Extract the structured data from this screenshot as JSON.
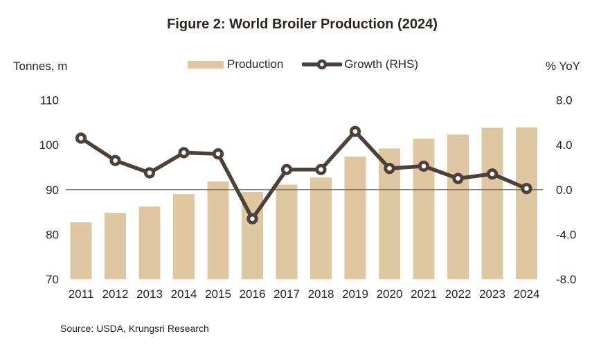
{
  "figure": {
    "title": "Figure 2: World Broiler Production (2024)",
    "left_axis_unit": "Tonnes, m",
    "right_axis_unit": "%  YoY",
    "legend": {
      "production_label": "Production",
      "growth_label": "Growth (RHS)"
    },
    "source": "Source: USDA, Krungsri Research"
  },
  "colors": {
    "bar": "#dfc7a1",
    "line": "#4b4139",
    "marker_fill": "#ffffff",
    "grid": "#5f584f",
    "text": "#262626",
    "title": "#2b2420"
  },
  "chart_data": {
    "type": "bar",
    "subtype": "combo bar + line, dual y-axis",
    "title": "Figure 2: World Broiler Production (2024)",
    "categories": [
      "2011",
      "2012",
      "2013",
      "2014",
      "2015",
      "2016",
      "2017",
      "2018",
      "2019",
      "2020",
      "2021",
      "2022",
      "2023",
      "2024"
    ],
    "series": [
      {
        "name": "Production",
        "type": "bar",
        "axis": "left",
        "unit": "million tonnes",
        "values": [
          82.7,
          84.8,
          86.2,
          89.0,
          91.8,
          89.5,
          91.1,
          92.7,
          97.4,
          99.2,
          101.4,
          102.3,
          103.8,
          103.9
        ]
      },
      {
        "name": "Growth (RHS)",
        "type": "line",
        "axis": "right",
        "unit": "% YoY",
        "values": [
          4.6,
          2.6,
          1.5,
          3.3,
          3.2,
          -2.6,
          1.8,
          1.8,
          5.2,
          1.9,
          2.1,
          1.0,
          1.4,
          0.1
        ]
      }
    ],
    "left_axis": {
      "label": "Tonnes, m",
      "min": 70,
      "max": 110,
      "ticks": [
        "70",
        "80",
        "90",
        "100",
        "110"
      ]
    },
    "right_axis": {
      "label": "% YoY",
      "min": -8,
      "max": 8,
      "ticks": [
        "-8.0",
        "-4.0",
        "0.0",
        "4.0",
        "8.0"
      ]
    },
    "gridline": {
      "left_value": 90,
      "right_value": 0.0,
      "note": "single horizontal line drawn over bars"
    },
    "legend_position": "top-center",
    "xlabel": "",
    "ylabel": "Tonnes, m (left), % YoY (right)"
  }
}
